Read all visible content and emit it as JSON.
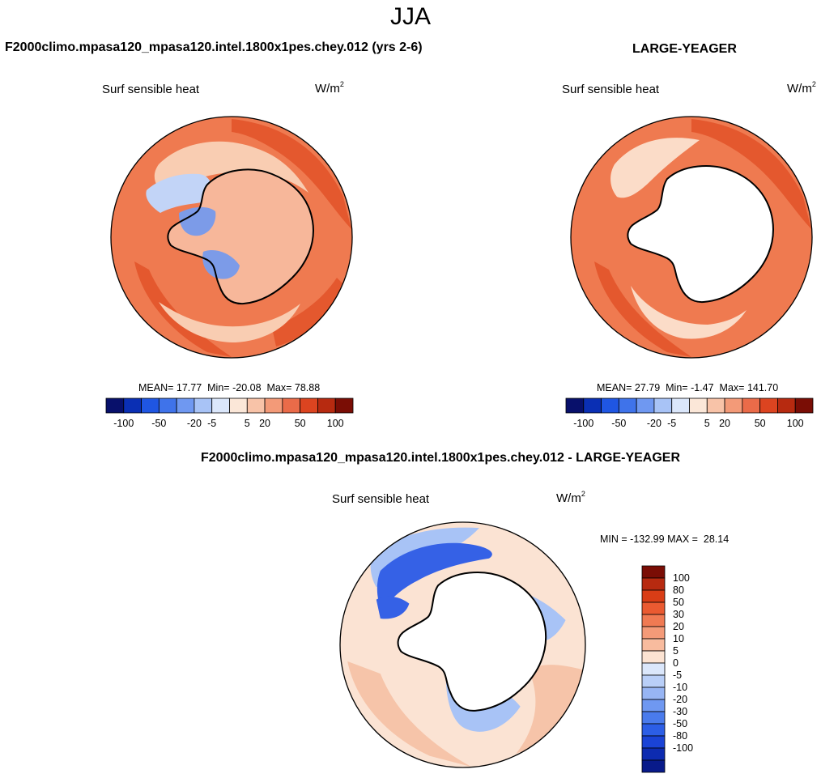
{
  "season": "JJA",
  "panels": [
    {
      "id": "test",
      "title": "F2000climo.mpasa120_mpasa120.intel.1800x1pes.chey.012 (yrs 2-6)",
      "variable": "Surf sensible heat",
      "units_base": "W/m",
      "units_exp": "2",
      "stats": {
        "mean_label": "MEAN=",
        "mean": "17.77",
        "min_label": "Min=",
        "min": "-20.08",
        "max_label": "Max=",
        "max": "78.88"
      }
    },
    {
      "id": "obs",
      "title": "LARGE-YEAGER",
      "variable": "Surf sensible heat",
      "units_base": "W/m",
      "units_exp": "2",
      "stats": {
        "mean_label": "MEAN=",
        "mean": "27.79",
        "min_label": "Min=",
        "min": "-1.47",
        "max_label": "Max=",
        "max": "141.70"
      }
    }
  ],
  "diff": {
    "title": "F2000climo.mpasa120_mpasa120.intel.1800x1pes.chey.012 - LARGE-YEAGER",
    "variable": "Surf sensible heat",
    "units_base": "W/m",
    "units_exp": "2",
    "stats": {
      "min_label": "MIN =",
      "min": "-132.99",
      "max_label": "MAX =",
      "max": "28.14"
    }
  },
  "colorbar_top": {
    "colors": [
      "#08106b",
      "#0a2fb4",
      "#1f56e3",
      "#3f73ea",
      "#6f98f1",
      "#a8c3f6",
      "#dbe7fb",
      "#fbe7d8",
      "#f8c3a8",
      "#f39a78",
      "#ea6b49",
      "#dc4420",
      "#b72a10",
      "#7a0d05"
    ],
    "tick_labels": [
      "-100",
      "-50",
      "-20",
      "-5",
      "5",
      "20",
      "50",
      "100"
    ]
  },
  "colorbar_diff": {
    "colors": [
      "#7a0d05",
      "#b72a10",
      "#d93d16",
      "#ea5a31",
      "#f07a53",
      "#f49a78",
      "#f8bb9e",
      "#fce3d2",
      "#dbe7fb",
      "#b9cff8",
      "#97b5f4",
      "#6f98f1",
      "#4a7bec",
      "#2c5ee6",
      "#1a43d6",
      "#0d2bb0",
      "#081a8a"
    ],
    "tick_labels": [
      "100",
      "80",
      "50",
      "30",
      "20",
      "10",
      "5",
      "0",
      "-5",
      "-10",
      "-20",
      "-30",
      "-50",
      "-80",
      "-100"
    ]
  },
  "maps": {
    "test": {
      "ocean_color": "#ef7a50",
      "ocean_band_color": "#e4582e",
      "near_coast_color": "#f9cdb2",
      "sea_ice_color": "#c2d4f7",
      "continent_color": "#f7b79a",
      "negative_region_color": "#7c9be8"
    },
    "obs": {
      "ocean_color": "#ef7a50",
      "ocean_band_color": "#e4582e",
      "near_coast_color": "#fbdcc8",
      "continent_color": "#ffffff"
    },
    "diff": {
      "ocean_color": "#fbe3d3",
      "band_color": "#f6c4a9",
      "negative_color": "#a8c3f6",
      "strong_negative_color": "#3561e6",
      "continent_color": "#ffffff"
    }
  }
}
